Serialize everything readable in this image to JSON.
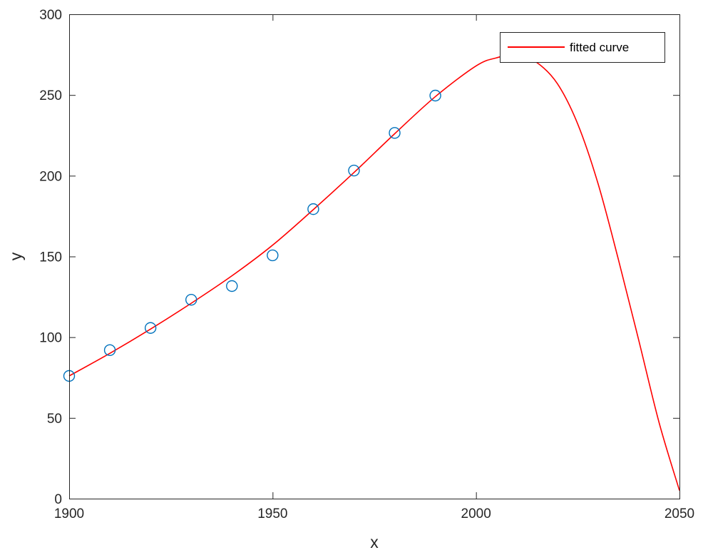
{
  "chart_data": {
    "type": "scatter",
    "title": "",
    "xlabel": "x",
    "ylabel": "y",
    "xlim": [
      1900,
      2050
    ],
    "ylim": [
      0,
      300
    ],
    "x_ticks": [
      1900,
      1950,
      2000,
      2050
    ],
    "y_ticks": [
      0,
      50,
      100,
      150,
      200,
      250,
      300
    ],
    "grid": false,
    "box": true,
    "legend": {
      "placement": "top-right",
      "entries": [
        "fitted curve"
      ]
    },
    "series": [
      {
        "kind": "scatter",
        "marker": "circle",
        "color": "#0072bd",
        "x": [
          1900,
          1910,
          1920,
          1930,
          1940,
          1950,
          1960,
          1970,
          1980,
          1990
        ],
        "y": [
          75.995,
          91.972,
          105.711,
          123.203,
          131.669,
          150.697,
          179.323,
          203.212,
          226.505,
          249.633
        ]
      },
      {
        "name": "fitted curve",
        "kind": "line",
        "color": "#ff0000",
        "x": [
          1900,
          1910,
          1920,
          1930,
          1940,
          1950,
          1960,
          1970,
          1980,
          1990,
          2000,
          2005,
          2010,
          2015,
          2020,
          2025,
          2030,
          2035,
          2040,
          2045,
          2050
        ],
        "y": [
          76,
          90,
          105,
          121,
          138,
          157,
          179,
          202,
          226,
          249,
          268,
          273,
          275,
          270,
          257,
          232,
          195,
          148,
          98,
          47,
          5
        ]
      }
    ]
  }
}
